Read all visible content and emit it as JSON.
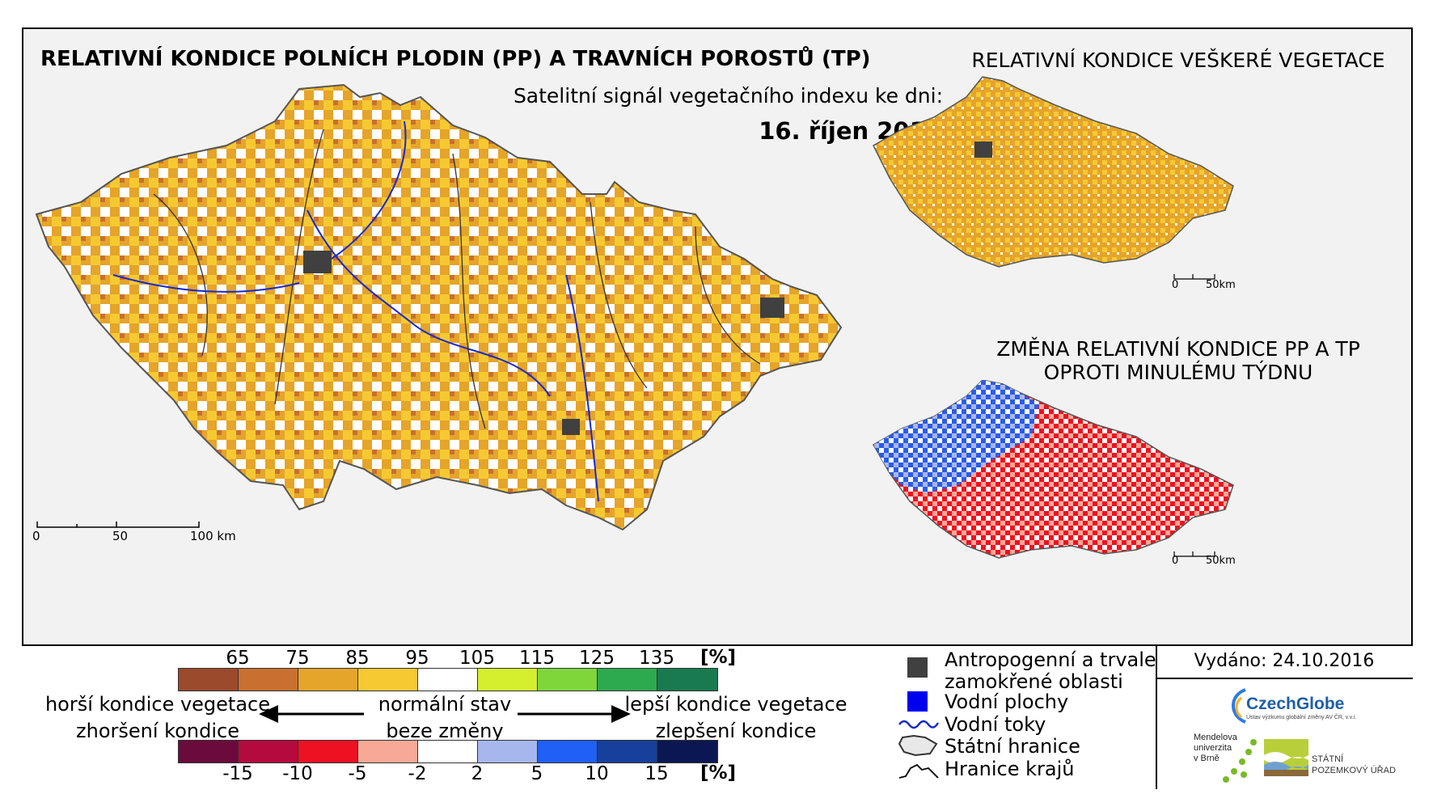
{
  "titles": {
    "main": "RELATIVNÍ KONDICE POLNÍCH PLODIN (PP) A TRAVNÍCH POROSTŮ (TP)",
    "subtitle": "Satelitní signál vegetačního indexu ke dni:",
    "date": "16. říjen 2016",
    "right_top": "RELATIVNÍ KONDICE VEŠKERÉ VEGETACE",
    "right_bottom_line1": "ZMĚNA RELATIVNÍ KONDICE PP A TP",
    "right_bottom_line2": "OPROTI MINULÉMU TÝDNU"
  },
  "main_scale": {
    "zero": "0",
    "mid": "50",
    "end": "100 km"
  },
  "small_scale_top": {
    "zero": "0",
    "end": "50km"
  },
  "small_scale_bottom": {
    "zero": "0",
    "end": "50km"
  },
  "legend_top": {
    "ticks": [
      "65",
      "75",
      "85",
      "95",
      "105",
      "115",
      "125",
      "135"
    ],
    "unit": "[%]",
    "colors": [
      "#9c4a2c",
      "#c8702f",
      "#e5a42a",
      "#f6c933",
      "#ffffff",
      "#d5ee2d",
      "#7ed63a",
      "#2daa4f",
      "#187a4e"
    ]
  },
  "legend_bottom": {
    "ticks": [
      "-15",
      "-10",
      "-5",
      "-2",
      "2",
      "5",
      "10",
      "15"
    ],
    "unit": "[%]",
    "colors": [
      "#6b0a3c",
      "#b50a3e",
      "#ee1122",
      "#f8a995",
      "#ffffff",
      "#a6b7ee",
      "#2060f4",
      "#173f9c",
      "#0b1752"
    ]
  },
  "legend_text": {
    "left_top": "horší kondice vegetace",
    "left_bottom": "zhoršení kondice",
    "center_top": "normální stav",
    "center_bottom": "beze změny",
    "right_top": "lepší kondice vegetace",
    "right_bottom": "zlepšení kondice"
  },
  "symbols": {
    "anthropogenic_line1": "Antropogenní a trvale",
    "anthropogenic_line2": "zamokřené oblasti",
    "water_areas": "Vodní plochy",
    "rivers": "Vodní toky",
    "state_border": "Státní hranice",
    "region_border": "Hranice krajů",
    "colors": {
      "anthropogenic": "#404040",
      "water": "#0000ee",
      "river": "#1a2acc"
    }
  },
  "credits": {
    "issued": "Vydáno: 24.10.2016",
    "czechglobe": "CzechGlobe",
    "czechglobe_sub": "Ústav výzkumu globální změny AV ČR, v.v.i.",
    "mendelu_1": "Mendelova",
    "mendelu_2": "univerzita",
    "mendelu_3": "v Brně",
    "spu_1": "STÁTNÍ",
    "spu_2": "POZEMKOVÝ ÚŘAD"
  }
}
